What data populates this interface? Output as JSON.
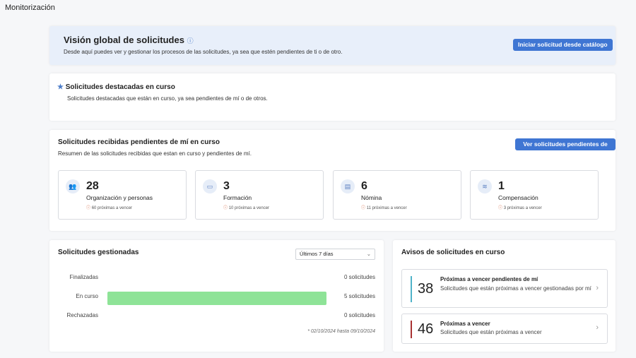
{
  "page_title": "Monitorización",
  "overview": {
    "title": "Visión global de solicitudes",
    "description": "Desde aquí puedes ver y gestionar los procesos de las solicitudes, ya sea que estén pendientes de ti o de otro.",
    "button": "Iniciar solicitud desde catálogo"
  },
  "featured": {
    "title": "Solicitudes destacadas en curso",
    "description": "Solicitudes destacadas que están en curso, ya sea pendientes de mí o de otros."
  },
  "received": {
    "title": "Solicitudes recibidas pendientes de mí en curso",
    "description": "Resumen de las solicitudes recibidas que estan en curso y pendientes de mí.",
    "button": "Ver solicitudes pendientes de mí",
    "categories": [
      {
        "icon": "people-icon",
        "count": "28",
        "label": "Organización y personas",
        "due": "60 próximas a vencer"
      },
      {
        "icon": "laptop-icon",
        "count": "3",
        "label": "Formación",
        "due": "10 próximas a vencer"
      },
      {
        "icon": "document-icon",
        "count": "6",
        "label": "Nómina",
        "due": "11 próximas a vencer"
      },
      {
        "icon": "compensation-icon",
        "count": "1",
        "label": "Compensación",
        "due": "3 próximas a vencer"
      }
    ]
  },
  "managed": {
    "title": "Solicitudes gestionadas",
    "period": "Últimos 7 días",
    "chart_data": {
      "type": "bar",
      "orientation": "horizontal",
      "categories": [
        "Finalizadas",
        "En curso",
        "Rechazadas"
      ],
      "values": [
        0,
        5,
        0
      ],
      "value_labels": [
        "0 solicitudes",
        "5 solicitudes",
        "0 solicitudes"
      ],
      "color": "#8ee397"
    },
    "range_note": "* 02/10/2024 hasta 09/10/2024"
  },
  "alerts": {
    "title": "Avisos de solicitudes en curso",
    "items": [
      {
        "count": "38",
        "title": "Próximas a vencer pendientes de mí",
        "description": "Solicitudes que están próximas a vencer gestionadas por mí",
        "color": "#4fb3c9"
      },
      {
        "count": "46",
        "title": "Próximas a vencer",
        "description": "Solicitudes que están próximas a vencer",
        "color": "#a83232"
      }
    ]
  }
}
